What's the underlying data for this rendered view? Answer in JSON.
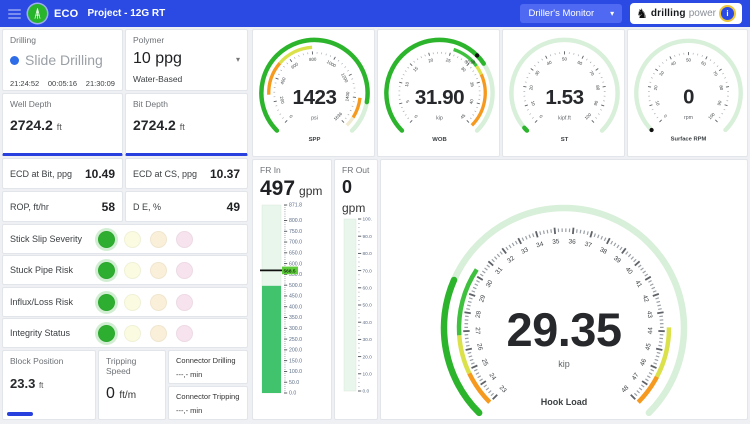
{
  "palette": {
    "topbar_blue": "#2b4ae3",
    "dropdown_blue": "#4f69f2",
    "accent_blue": "#2840dd",
    "gauge_green": "#2cb42c",
    "gauge_track": "#d8efd9",
    "band_orange": "#f59a1f",
    "band_yellow": "#dbe14a",
    "band_green": "#3fc03f",
    "band_pale": "#f0ead0",
    "bar_fill": "#41c26d",
    "bar_track": "#e8f6ec",
    "bar_chip": "#5ecb3a",
    "risk_active": "#2eae30",
    "risk_idle": [
      "#fafbe0",
      "#faf0d9",
      "#f7e3ee"
    ]
  },
  "icons": {
    "caret_down": "▾",
    "brand_glyph": "♞"
  },
  "topbar": {
    "app_name": "ECO",
    "project_label": "Project -  12G RT",
    "view_selector": "Driller's Monitor",
    "brand_bold": "drilling",
    "brand_light": "power",
    "info_badge": "i"
  },
  "left": {
    "drilling": {
      "label": "Drilling",
      "status": "Slide Drilling",
      "t1": "21:24:52",
      "t2": "00:05:16",
      "t3": "21:30:09"
    },
    "polymer": {
      "label": "Polymer",
      "value": "10 ppg",
      "subtype": "Water-Based"
    },
    "well_depth": {
      "label": "Well Depth",
      "value": "2724.2",
      "unit": "ft"
    },
    "bit_depth": {
      "label": "Bit Depth",
      "value": "2724.2",
      "unit": "ft"
    },
    "metrics": [
      {
        "label": "ECD at Bit, ppg",
        "value": "10.49"
      },
      {
        "label": "ECD at CS, ppg",
        "value": "10.37"
      },
      {
        "label": "ROP, ft/hr",
        "value": "58"
      },
      {
        "label": "D E, %",
        "value": "49"
      }
    ],
    "risk_rows": [
      {
        "label": "Stick Slip Severity",
        "active": 0
      },
      {
        "label": "Stuck Pipe Risk",
        "active": 0
      },
      {
        "label": "Influx/Loss Risk",
        "active": 0
      },
      {
        "label": "Integrity Status",
        "active": 0
      }
    ],
    "block_position": {
      "label": "Block Position",
      "value": "23.3",
      "unit": "ft",
      "progress_pct": 28
    },
    "tripping_speed": {
      "label": "Tripping Speed",
      "value": "0",
      "unit": "ft/m"
    },
    "connector_drilling": {
      "label": "Connector Drilling",
      "value": "---,- min"
    },
    "connector_tripping": {
      "label": "Connector Tripping",
      "value": "---,- min"
    }
  },
  "gauges": [
    {
      "id": "spp",
      "name": "SPP",
      "unit": "psi",
      "value": 1423,
      "value_text": "1423",
      "min": 0,
      "max": 1636,
      "majors": [
        0,
        200,
        400,
        600,
        800,
        1000,
        1200,
        1400,
        1636
      ],
      "minor_step": 40,
      "bands": [
        {
          "from": 260,
          "to": 520,
          "color": "band_orange"
        },
        {
          "from": 520,
          "to": 800,
          "color": "band_yellow"
        },
        {
          "from": 1400,
          "to": 1560,
          "color": "band_orange"
        },
        {
          "from": 1560,
          "to": 1636,
          "color": "band_pale"
        }
      ]
    },
    {
      "id": "wob",
      "name": "WOB",
      "unit": "kip",
      "value": 31.9,
      "value_text": "31.90",
      "min": 0,
      "max": 45,
      "majors": [
        0,
        5,
        10,
        15,
        20,
        25,
        30,
        35,
        40,
        45
      ],
      "minor_step": 1,
      "bands": [
        {
          "from": 25.5,
          "to": 31.5,
          "color": "band_green"
        },
        {
          "from": 31.5,
          "to": 33.5,
          "color": "band_yellow"
        },
        {
          "from": 33.5,
          "to": 45,
          "color": "band_orange"
        }
      ],
      "marker": {
        "value": 30,
        "label": "30.00"
      }
    },
    {
      "id": "st",
      "name": "ST",
      "unit": "kipf.ft",
      "value": 1.53,
      "value_text": "1.53",
      "min": 0,
      "max": 100,
      "majors": [
        0,
        10,
        20,
        30,
        40,
        50,
        60,
        70,
        80,
        90,
        100
      ],
      "minor_step": 2.5,
      "bands": []
    },
    {
      "id": "rpm",
      "name": "Surface RPM",
      "unit": "rpm",
      "value": 0,
      "value_text": "0",
      "min": 0,
      "max": 100,
      "majors": [
        0,
        10,
        20,
        30,
        40,
        50,
        60,
        70,
        80,
        90,
        100
      ],
      "minor_step": 2.5,
      "bands": [],
      "marker": {
        "value": 0,
        "label": ""
      }
    }
  ],
  "hook_gauge": {
    "id": "hookload",
    "name": "Hook Load",
    "unit": "kip",
    "value": 29.35,
    "value_text": "29.35",
    "min": 23,
    "max": 48,
    "majors": [
      23,
      24,
      25,
      26,
      27,
      28,
      29,
      30,
      31,
      32,
      33,
      34,
      35,
      36,
      37,
      38,
      39,
      40,
      41,
      42,
      43,
      44,
      45,
      46,
      47,
      48
    ],
    "minor_step": 0.2,
    "bands": [
      {
        "from": 23,
        "to": 24.8,
        "color": "band_orange"
      },
      {
        "from": 24.8,
        "to": 26.8,
        "color": "band_yellow"
      },
      {
        "from": 26.8,
        "to": 30.3,
        "color": "band_green"
      },
      {
        "from": 43.8,
        "to": 46.4,
        "color": "band_yellow"
      },
      {
        "from": 46.4,
        "to": 48,
        "color": "band_orange"
      }
    ]
  },
  "flow_in": {
    "label": "FR In",
    "value_text": "497",
    "unit": "gpm",
    "value": 497,
    "min": 0,
    "max": 871.8,
    "tick_labels": [
      "871.8",
      "800.0",
      "750.0",
      "700.0",
      "650.0",
      "600.0",
      "550.0",
      "500.0",
      "450.0",
      "400.0",
      "350.0",
      "300.0",
      "250.0",
      "200.0",
      "150.0",
      "100.0",
      "50.0",
      "0.0"
    ],
    "minor_step": 10,
    "marker": {
      "value": 568.5,
      "label": "568.5"
    }
  },
  "flow_out": {
    "label": "FR Out",
    "value_text": "0",
    "unit": "gpm",
    "value": 0,
    "min": 0,
    "max": 100,
    "tick_labels": [
      "100.0",
      "90.0",
      "80.0",
      "70.0",
      "60.0",
      "50.0",
      "40.0",
      "30.0",
      "20.0",
      "10.0",
      "0.0"
    ],
    "minor_step": 2.5
  }
}
